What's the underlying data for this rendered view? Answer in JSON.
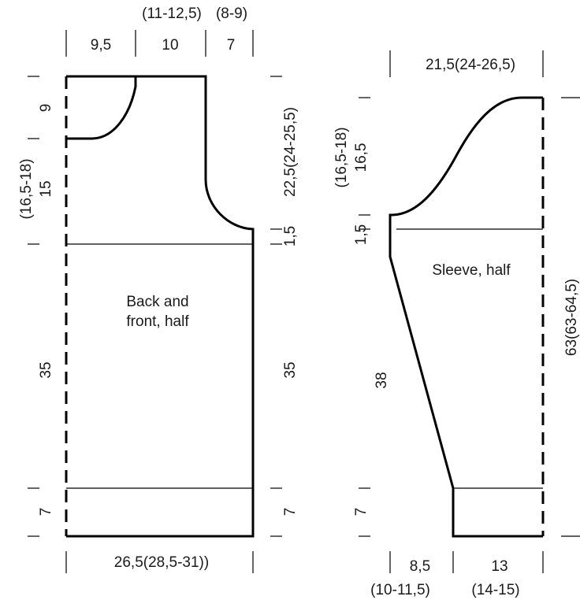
{
  "body_piece": {
    "label_line1": "Back and",
    "label_line2": "front, half",
    "top_group_label": "(11-12,5)",
    "top_group_label_2": "(8-9)",
    "top_segments": [
      "9,5",
      "10",
      "7"
    ],
    "left_neck_depth": "9",
    "left_armhole_line1": "(16,5-18)",
    "left_armhole_line2": "15",
    "left_body": "35",
    "left_rib": "7",
    "right_armhole": "22,5(24-25,5)",
    "right_small": "1,5",
    "right_body": "35",
    "right_rib": "7",
    "bottom_width": "26,5(28,5-31))"
  },
  "sleeve_piece": {
    "label": "Sleeve, half",
    "top_width": "21,5(24-26,5)",
    "left_cap_line1": "(16,5-18)",
    "left_cap_line2": "16,5",
    "left_small": "1,5",
    "left_length": "38",
    "left_rib": "7",
    "right_total": "63(63-64,5)",
    "bottom_left": "8,5",
    "bottom_left_sub": "(10-11,5)",
    "bottom_right": "13",
    "bottom_right_sub": "(14-15)"
  }
}
